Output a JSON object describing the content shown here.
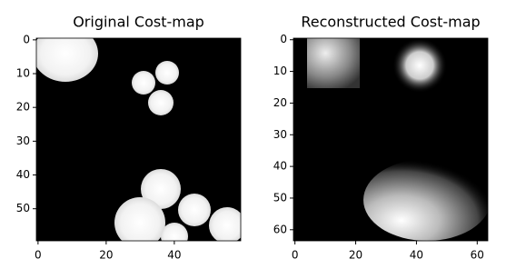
{
  "chart_data": [
    {
      "type": "image",
      "title": "Original Cost-map",
      "xlim": [
        -0.5,
        59.5
      ],
      "ylim": [
        59.5,
        -0.5
      ],
      "xticks": [
        0,
        20,
        40
      ],
      "yticks": [
        0,
        10,
        20,
        30,
        40,
        50
      ]
    },
    {
      "type": "image",
      "title": "Reconstructed Cost-map",
      "xlim": [
        -0.5,
        63.5
      ],
      "ylim": [
        63.5,
        -0.5
      ],
      "xticks": [
        0,
        20,
        40,
        60
      ],
      "yticks": [
        0,
        10,
        20,
        30,
        40,
        50,
        60
      ]
    }
  ]
}
